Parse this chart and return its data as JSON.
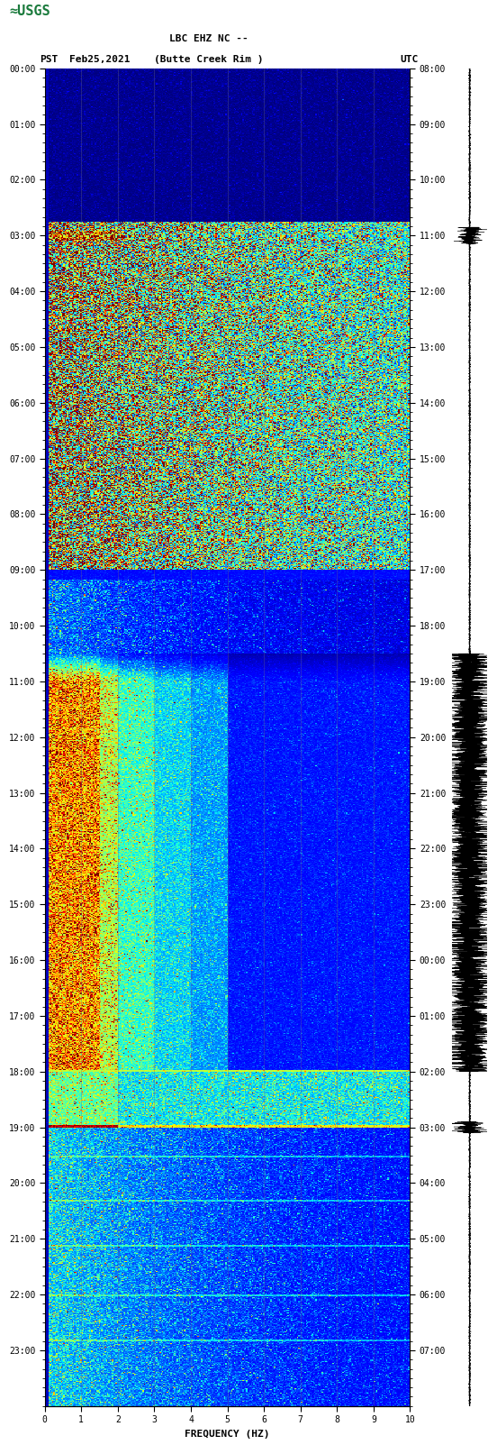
{
  "title_line1": "LBC EHZ NC --",
  "title_line2": "(Butte Creek Rim )",
  "left_label": "PST",
  "date_label": "Feb25,2021",
  "right_label": "UTC",
  "xlabel": "FREQUENCY (HZ)",
  "freq_min": 0,
  "freq_max": 10,
  "freq_ticks": [
    0,
    1,
    2,
    3,
    4,
    5,
    6,
    7,
    8,
    9,
    10
  ],
  "bg_color": "#ffffff",
  "colormap": "jet",
  "usgs_green": "#1a7a3c",
  "tick_fontsize": 7,
  "label_fontsize": 8,
  "title_fontsize": 8,
  "seismogram_color": "#000000",
  "vmin": 0.0,
  "vmax": 6.5,
  "gridline_color": "#666688",
  "gridline_alpha": 0.5
}
